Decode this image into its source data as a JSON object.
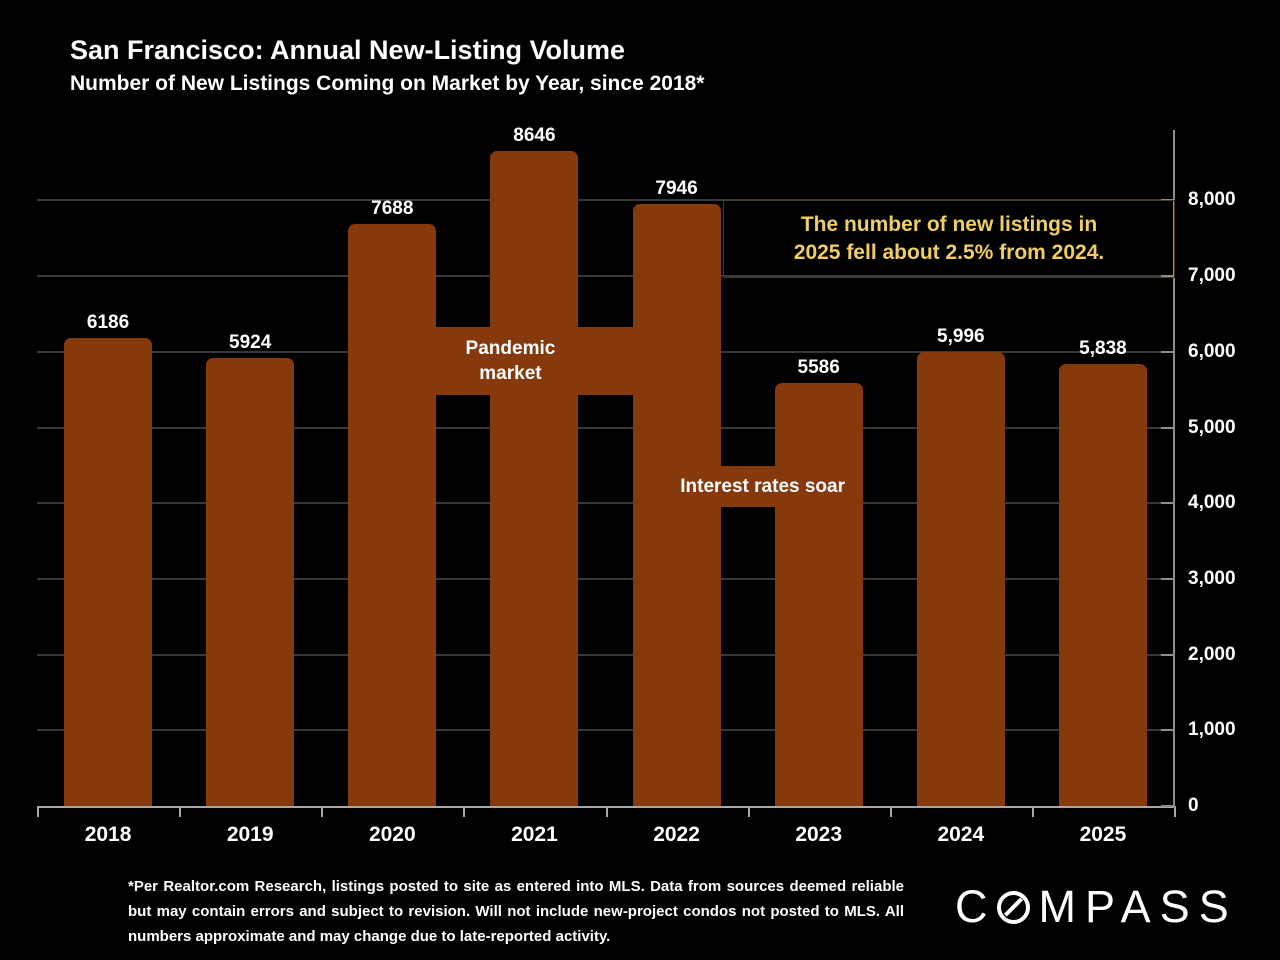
{
  "header": {
    "title": "San Francisco: Annual New-Listing Volume",
    "subtitle": "Number of New Listings Coming on Market by Year, since 2018*"
  },
  "chart_data": {
    "type": "bar",
    "title": "San Francisco: Annual New-Listing Volume",
    "subtitle": "Number of New Listings Coming on Market by Year, since 2018*",
    "categories": [
      "2018",
      "2019",
      "2020",
      "2021",
      "2022",
      "2023",
      "2024",
      "2025"
    ],
    "values": [
      6186,
      5924,
      7688,
      8646,
      7946,
      5586,
      5996,
      5838
    ],
    "value_labels": [
      "6186",
      "5924",
      "7688",
      "8646",
      "7946",
      "5586",
      "5,996",
      "5,838"
    ],
    "bar_color": "#86390D",
    "background": "#000000",
    "ylim": [
      0,
      8930
    ],
    "y_axis": {
      "side": "right",
      "ticks": [
        {
          "value": 0,
          "label": "0"
        },
        {
          "value": 1000,
          "label": "1,000"
        },
        {
          "value": 2000,
          "label": "2,000"
        },
        {
          "value": 3000,
          "label": "3,000"
        },
        {
          "value": 4000,
          "label": "4,000"
        },
        {
          "value": 5000,
          "label": "5,000"
        },
        {
          "value": 6000,
          "label": "6,000"
        },
        {
          "value": 7000,
          "label": "7,000"
        },
        {
          "value": 8000,
          "label": "8,000"
        }
      ]
    },
    "grid": {
      "horizontal": true,
      "color": "#36383A"
    },
    "annotations": [
      {
        "id": "pandemic",
        "lines": [
          "Pandemic",
          "market"
        ],
        "from_category": "2020",
        "to_category": "2022",
        "value_top": 6330,
        "value_bottom": 5430,
        "fill": "#86390D",
        "text_color": "#FFFFFF"
      },
      {
        "id": "interest",
        "lines": [
          "Interest rates soar"
        ],
        "from_category": "2022",
        "to_category": "2023",
        "value_top": 4490,
        "value_bottom": 3950,
        "fill": "#86390D",
        "text_color": "#FFFFFF"
      }
    ],
    "callout": {
      "lines": [
        "The number of new listings in",
        "2025 fell about 2.5% from 2024."
      ],
      "text_color": "#EFCE63"
    }
  },
  "footer": {
    "footnote": "*Per Realtor.com Research, listings posted to site as entered into MLS. Data from sources deemed reliable but may contain errors and subject to revision. Will not include new-project condos not posted to MLS. All numbers approximate and may change due to late-reported activity.",
    "brand": {
      "before_o": "C",
      "after_o": "MPASS"
    }
  }
}
